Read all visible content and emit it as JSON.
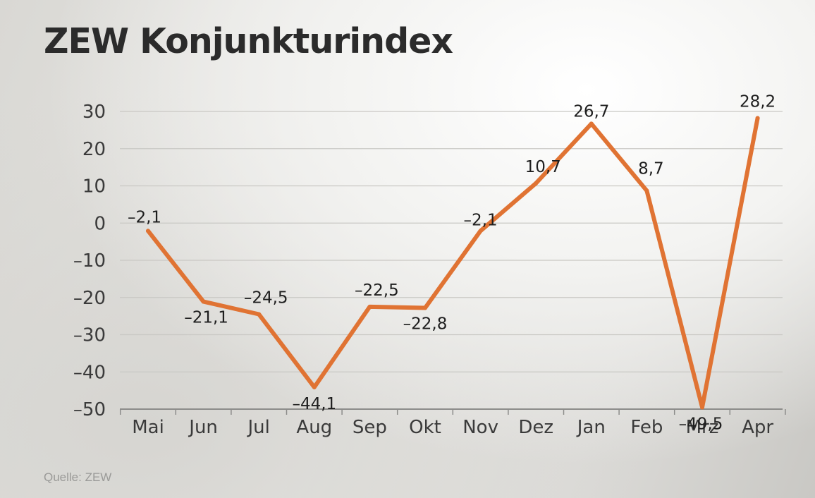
{
  "title": "ZEW Konjunkturindex",
  "source": "Quelle: ZEW",
  "colors": {
    "line": "#e07333",
    "grid": "#c9c8c4",
    "axis": "#8c8c8a"
  },
  "chart_data": {
    "type": "line",
    "title": "ZEW Konjunkturindex",
    "categories": [
      "Mai",
      "Jun",
      "Jul",
      "Aug",
      "Sep",
      "Okt",
      "Nov",
      "Dez",
      "Jan",
      "Feb",
      "Mrz",
      "Apr"
    ],
    "series": [
      {
        "values": [
          -2.1,
          -21.1,
          -24.5,
          -44.1,
          -22.5,
          -22.8,
          -2.1,
          10.7,
          26.7,
          8.7,
          -49.5,
          28.2
        ],
        "labels": [
          "–2,1",
          "–21,1",
          "–24,5",
          "–44,1",
          "–22,5",
          "–22,8",
          "–2,1",
          "10,7",
          "26,7",
          "8,7",
          "–49,5",
          "28,2"
        ]
      }
    ],
    "yticks": [
      30,
      20,
      10,
      0,
      -10,
      -20,
      -30,
      -40,
      -50
    ],
    "ytick_labels": [
      "30",
      "20",
      "10",
      "0",
      "–10",
      "–20",
      "–30",
      "–40",
      "–50"
    ],
    "ylim": [
      -50,
      30
    ],
    "grid": true,
    "xlabel": "",
    "ylabel": ""
  }
}
